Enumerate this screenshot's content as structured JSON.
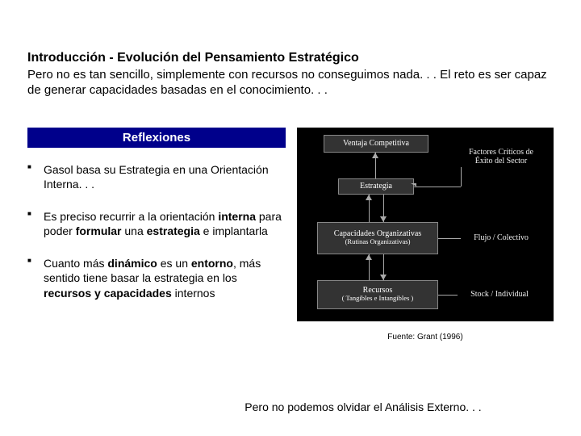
{
  "title": "Introducción - Evolución del Pensamiento Estratégico",
  "subtitle": "Pero no es tan sencillo, simplemente con recursos no conseguimos nada. . . El reto es ser capaz de generar capacidades basadas en el conocimiento. . .",
  "reflexiones_label": "Reflexiones",
  "bullets": {
    "b0": "Gasol basa su Estrategia en una Orientación Interna. . .",
    "b1_html": "Es preciso recurrir a la orientación <b>interna</b> para poder <b>formular</b> una <b>estrategia</b> e implantarla",
    "b2_html": "Cuanto más <b>dinámico</b> es un <b>entorno</b>, más sentido tiene basar la estrategia en los <b>recursos y capacidades</b> internos"
  },
  "diagram": {
    "bg_color": "#000000",
    "box_bg": "#333333",
    "box_border": "#888888",
    "line_color": "#aaaaaa",
    "text_color": "#ffffff",
    "ventaja": "Ventaja Competitiva",
    "estrategia": "Estrategia",
    "capacidades": "Capacidades Organizativas",
    "capacidades_sub": "(Rutinas Organizativas)",
    "recursos": "Recursos",
    "recursos_sub": "( Tangibles e Intangibles )",
    "factores": "Factores Críticos de Éxito del Sector",
    "flujo": "Flujo / Colectivo",
    "stock": "Stock / Individual"
  },
  "source": "Fuente: Grant (1996)",
  "footer": "Pero no podemos olvidar el Análisis Externo. . ."
}
